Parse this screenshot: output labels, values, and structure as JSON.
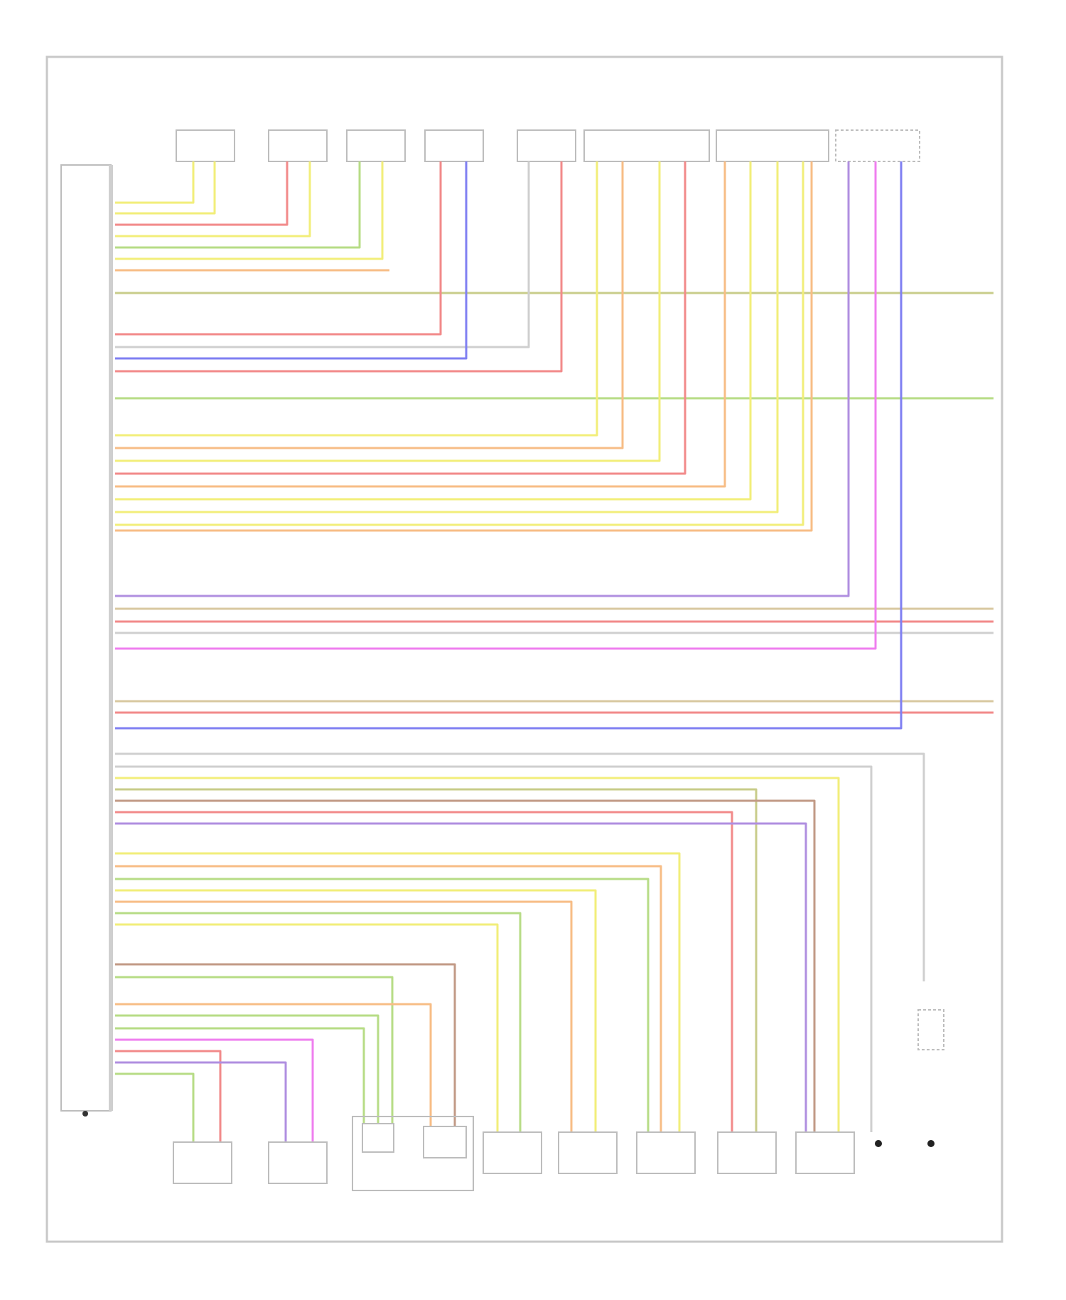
{
  "diagram_code": "",
  "ecu_label": "",
  "ecu_bottom_label": "",
  "top_components": [
    {
      "id": "c1",
      "label": ""
    },
    {
      "id": "c2",
      "label": ""
    },
    {
      "id": "c3",
      "label": ""
    },
    {
      "id": "c4",
      "label": ""
    },
    {
      "id": "c5",
      "label": ""
    },
    {
      "id": "c6",
      "label": ""
    },
    {
      "id": "c7",
      "label": ""
    },
    {
      "id": "c8",
      "label": ""
    }
  ],
  "bottom_components": [
    {
      "id": "b1",
      "label": ""
    },
    {
      "id": "b2",
      "label": ""
    },
    {
      "id": "b3",
      "label": ""
    },
    {
      "id": "b4",
      "label": ""
    },
    {
      "id": "b5",
      "label": ""
    },
    {
      "id": "b6",
      "label": ""
    },
    {
      "id": "b7",
      "label": ""
    },
    {
      "id": "b8",
      "label": ""
    },
    {
      "id": "b9",
      "label": ""
    }
  ],
  "right_labels": [
    {
      "id": "r1",
      "text": ""
    },
    {
      "id": "r2",
      "text": ""
    },
    {
      "id": "r3",
      "text": ""
    },
    {
      "id": "r4",
      "text": ""
    }
  ],
  "colors": {
    "frame": "#c8c8c8",
    "yellow": "#f2ee7a",
    "red": "#f28a8a",
    "orange": "#f7bd86",
    "green": "#b7dc86",
    "blue": "#7f7ff2",
    "magenta": "#ef7fef",
    "violet": "#b08fe0",
    "tan": "#d8c8a0",
    "olive": "#c8cc8a",
    "gray": "#cfcfcf",
    "brown": "#c29a86"
  }
}
